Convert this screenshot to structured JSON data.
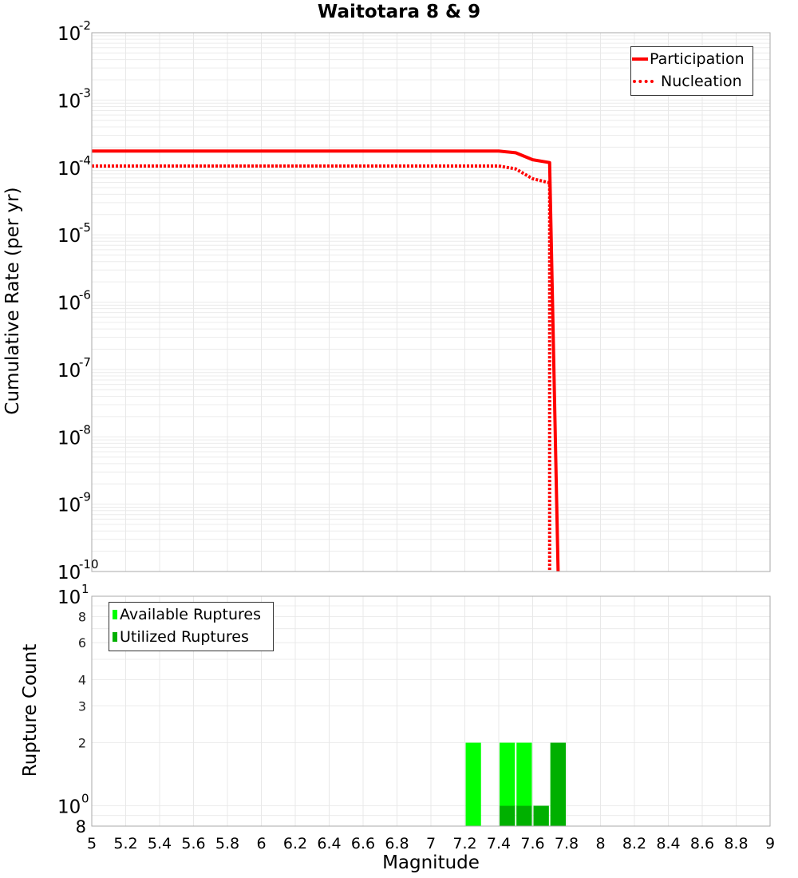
{
  "chart_data": [
    {
      "type": "line",
      "title": "Waitotara 8 & 9",
      "xlabel": "Magnitude",
      "ylabel": "Cumulative Rate (per yr)",
      "yscale": "log",
      "xlim": [
        5,
        9
      ],
      "ylim": [
        1e-10,
        0.01
      ],
      "grid": true,
      "legend_position": "top-right",
      "y_tick_labels": [
        "10^-2",
        "10^-3",
        "10^-4",
        "10^-5",
        "10^-6",
        "10^-7",
        "10^-8",
        "10^-9",
        "10^-10"
      ],
      "series": [
        {
          "name": "Participation",
          "style": "solid",
          "color": "#ff0000",
          "x": [
            5.0,
            7.4,
            7.5,
            7.6,
            7.7,
            7.75
          ],
          "y": [
            0.000175,
            0.000175,
            0.000165,
            0.00013,
            0.000118,
            1e-10
          ]
        },
        {
          "name": "Nucleation",
          "style": "dotted",
          "color": "#ff0000",
          "x": [
            5.0,
            7.4,
            7.5,
            7.6,
            7.7,
            7.7
          ],
          "y": [
            0.000105,
            0.000105,
            9.5e-05,
            6.8e-05,
            5.9e-05,
            1e-10
          ]
        }
      ]
    },
    {
      "type": "bar",
      "xlabel": "Magnitude",
      "ylabel": "Rupture Count",
      "yscale": "log",
      "xlim": [
        5,
        9
      ],
      "ylim": [
        0.8,
        10
      ],
      "grid": true,
      "legend_position": "top-left",
      "x_tick_labels": [
        "5",
        "5.2",
        "5.4",
        "5.6",
        "5.8",
        "6",
        "6.2",
        "6.4",
        "6.6",
        "6.8",
        "7",
        "7.2",
        "7.4",
        "7.6",
        "7.8",
        "8",
        "8.2",
        "8.4",
        "8.6",
        "8.8",
        "9"
      ],
      "y_tick_labels": [
        "8",
        "10^0",
        "2",
        "3",
        "4",
        "6",
        "8",
        "10^1"
      ],
      "bin_centers": [
        7.25,
        7.45,
        7.55,
        7.65,
        7.75
      ],
      "series": [
        {
          "name": "Available Ruptures",
          "color": "#00ff00",
          "values": [
            2,
            2,
            2,
            1,
            2
          ]
        },
        {
          "name": "Utilized Ruptures",
          "color": "#00b000",
          "values": [
            0,
            1,
            1,
            1,
            2
          ]
        }
      ]
    }
  ],
  "title": "Waitotara 8 & 9",
  "top": {
    "ylabel": "Cumulative Rate (per yr)",
    "legend": [
      {
        "label": "Participation"
      },
      {
        "label": "Nucleation"
      }
    ],
    "yticks": [
      {
        "base": "10",
        "exp": "-2"
      },
      {
        "base": "10",
        "exp": "-3"
      },
      {
        "base": "10",
        "exp": "-4"
      },
      {
        "base": "10",
        "exp": "-5"
      },
      {
        "base": "10",
        "exp": "-6"
      },
      {
        "base": "10",
        "exp": "-7"
      },
      {
        "base": "10",
        "exp": "-8"
      },
      {
        "base": "10",
        "exp": "-9"
      },
      {
        "base": "10",
        "exp": "-10"
      }
    ]
  },
  "bottom": {
    "ylabel": "Rupture Count",
    "xlabel": "Magnitude",
    "legend": [
      {
        "label": "Available Ruptures"
      },
      {
        "label": "Utilized Ruptures"
      }
    ],
    "yticks": {
      "t8a": "8",
      "t6": "6",
      "t4": "4",
      "t3": "3",
      "t2": "2",
      "t8b": "8",
      "dec1_base": "10",
      "dec1_exp": "1",
      "dec0_base": "10",
      "dec0_exp": "0"
    },
    "xticks": [
      "5",
      "5.2",
      "5.4",
      "5.6",
      "5.8",
      "6",
      "6.2",
      "6.4",
      "6.6",
      "6.8",
      "7",
      "7.2",
      "7.4",
      "7.6",
      "7.8",
      "8",
      "8.2",
      "8.4",
      "8.6",
      "8.8",
      "9"
    ]
  }
}
